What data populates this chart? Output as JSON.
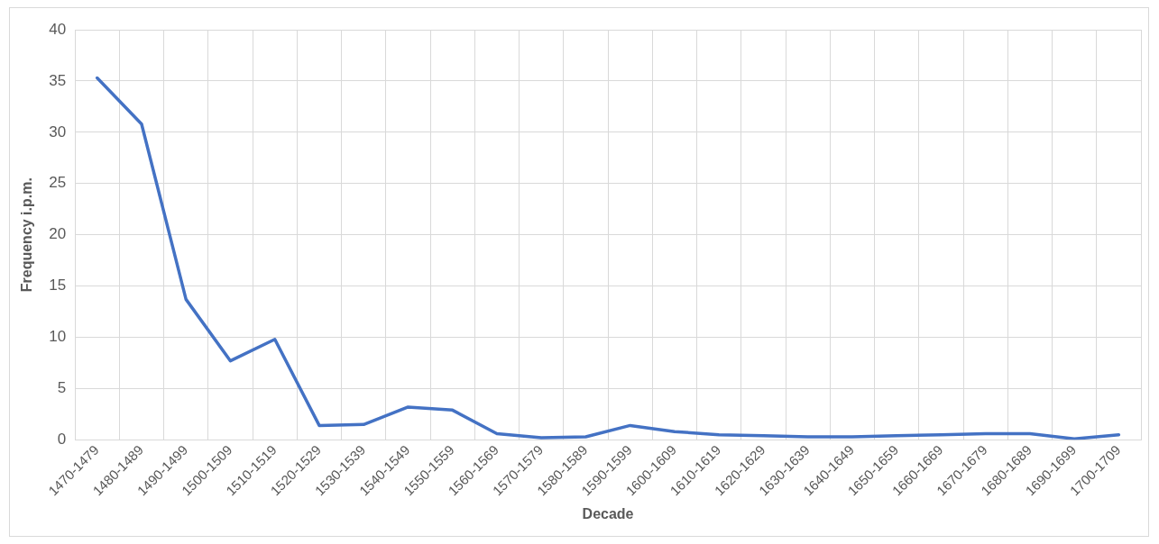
{
  "chart_data": {
    "type": "line",
    "xlabel": "Decade",
    "ylabel": "Frequency i.p.m.",
    "categories": [
      "1470-1479",
      "1480-1489",
      "1490-1499",
      "1500-1509",
      "1510-1519",
      "1520-1529",
      "1530-1539",
      "1540-1549",
      "1550-1559",
      "1560-1569",
      "1570-1579",
      "1580-1589",
      "1590-1599",
      "1600-1609",
      "1610-1619",
      "1620-1629",
      "1630-1639",
      "1640-1649",
      "1650-1659",
      "1660-1669",
      "1670-1679",
      "1680-1689",
      "1690-1699",
      "1700-1709"
    ],
    "series": [
      {
        "color": "#4472c4",
        "values": [
          35.3,
          30.8,
          13.7,
          7.7,
          9.8,
          1.4,
          1.5,
          3.2,
          2.9,
          0.6,
          0.2,
          0.3,
          1.4,
          0.8,
          0.5,
          0.4,
          0.3,
          0.3,
          0.4,
          0.5,
          0.6,
          0.6,
          0.1,
          0.5
        ]
      }
    ],
    "ylim": [
      0,
      40
    ],
    "yticks": [
      0,
      5,
      10,
      15,
      20,
      25,
      30,
      35,
      40
    ],
    "grid": true,
    "legend": false,
    "marker": "none",
    "line_style": "solid"
  }
}
